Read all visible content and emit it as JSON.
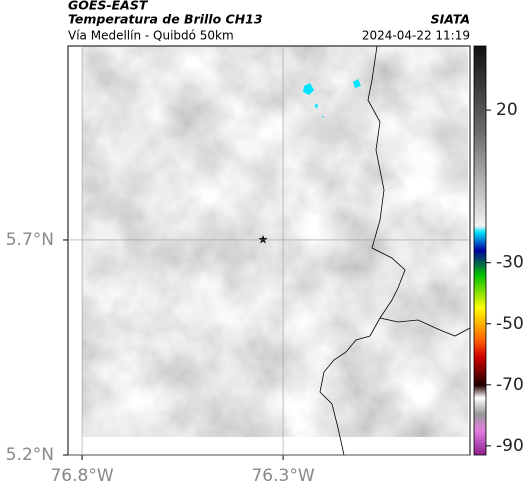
{
  "header": {
    "title": "GOES-EAST",
    "subtitle": "Temperatura de Brillo CH13",
    "source": "SIATA",
    "location": "Vía Medellín - Quibdó 50km",
    "timestamp": "2024-04-22 11:19"
  },
  "map": {
    "xlim": [
      -76.835,
      -75.835
    ],
    "ylim": [
      5.2,
      6.151
    ],
    "xticks": [
      {
        "value": -76.8,
        "label": "76.8°W"
      },
      {
        "value": -76.3,
        "label": "76.3°W"
      }
    ],
    "yticks": [
      {
        "value": 5.7,
        "label": "5.7°N"
      },
      {
        "value": 5.2,
        "label": "5.2°N"
      }
    ],
    "grid": true
  },
  "colorbar": {
    "clim": [
      -93,
      41
    ],
    "ticks": [
      20,
      -30,
      -50,
      -70,
      -90
    ]
  }
}
